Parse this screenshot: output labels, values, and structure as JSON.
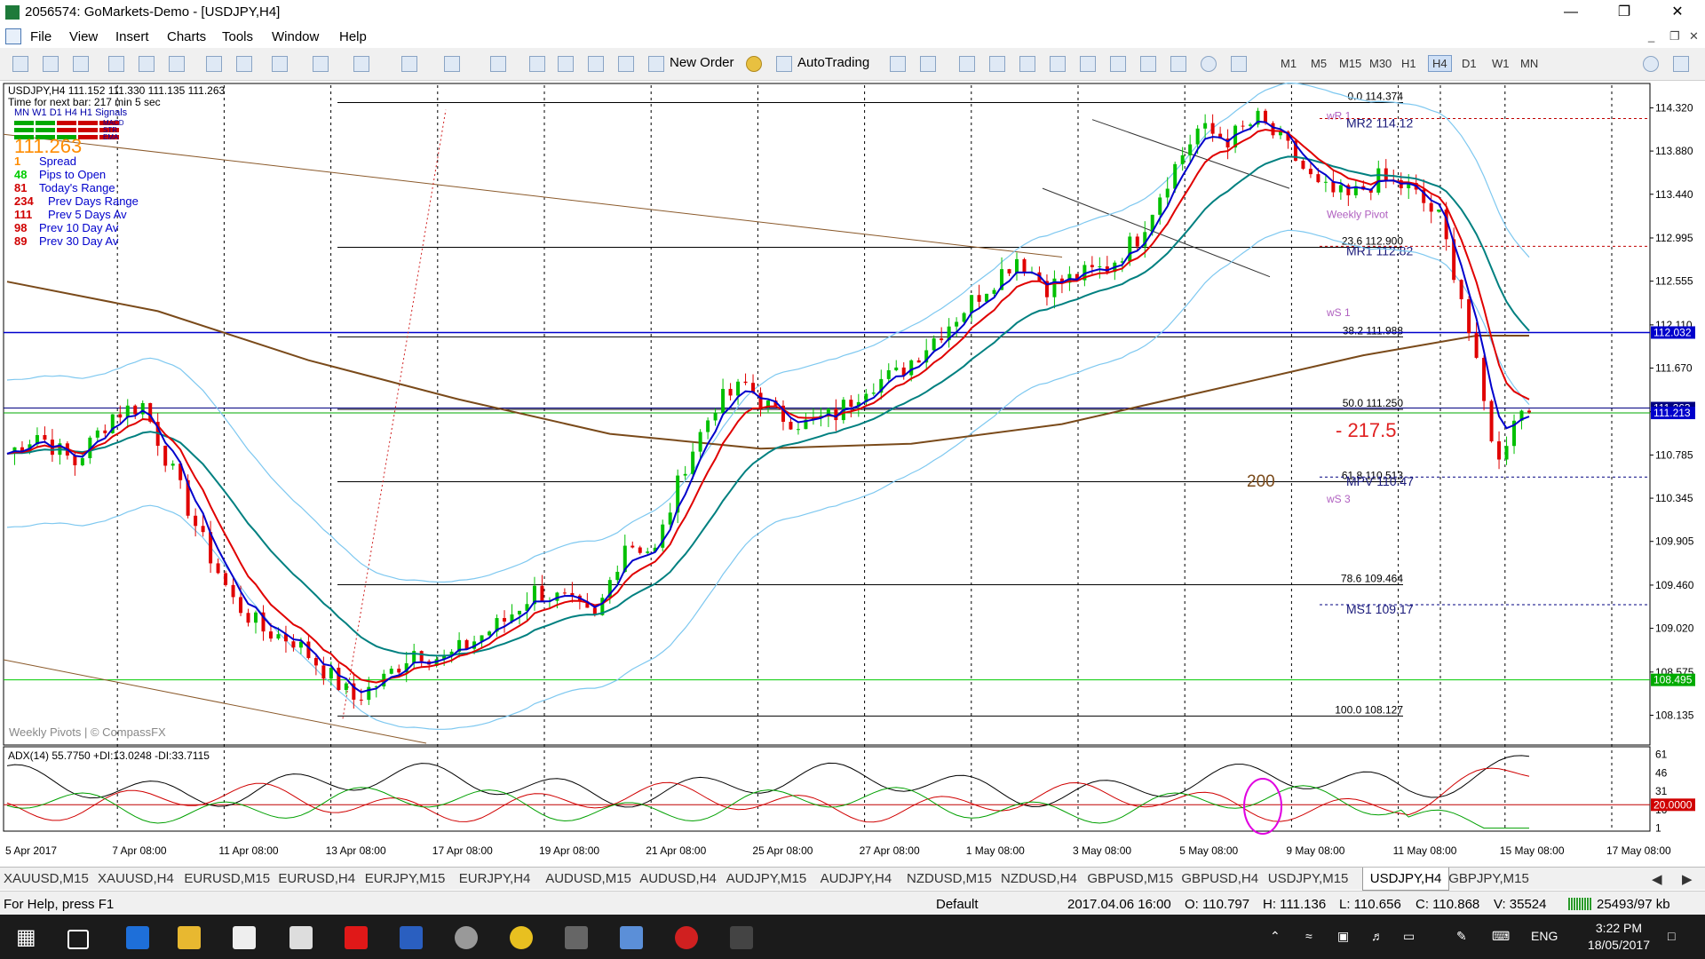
{
  "window": {
    "title": "2056574: GoMarkets-Demo - [USDJPY,H4]"
  },
  "menu": [
    "File",
    "View",
    "Insert",
    "Charts",
    "Tools",
    "Window",
    "Help"
  ],
  "toolbar": {
    "new_order": "New Order",
    "autotrading": "AutoTrading",
    "timeframes": [
      "M1",
      "M5",
      "M15",
      "M30",
      "H1",
      "H4",
      "D1",
      "W1",
      "MN"
    ],
    "active_tf": "H4"
  },
  "chart_header": {
    "symbol_line": "USDJPY,H4  111.152 111.330 111.135 111.263",
    "next_bar": "Time for next bar: 217 min 5 sec",
    "signals_label": "MN W1 D1 H4 H1  Signals",
    "signal_rows": [
      "MACD",
      "STR",
      "EMA"
    ],
    "big_price": "111.263"
  },
  "stats": [
    {
      "value": "1",
      "label": "Spread"
    },
    {
      "value": "48",
      "label": "Pips to Open"
    },
    {
      "value": "81",
      "label": "Today's Range"
    },
    {
      "value": "234",
      "label": "Prev Days Range"
    },
    {
      "value": "111",
      "label": "Prev 5 Days Av"
    },
    {
      "value": "98",
      "label": "Prev 10 Day Av"
    },
    {
      "value": "89",
      "label": "Prev 30 Day Av"
    }
  ],
  "watermark": "Weekly Pivots | © CompassFX",
  "chart_data": {
    "type": "candlestick",
    "symbol": "USDJPY",
    "timeframe": "H4",
    "ylim": [
      107.85,
      114.55
    ],
    "y_ticks": [
      "114.320",
      "113.880",
      "113.440",
      "112.995",
      "112.555",
      "112.110",
      "111.670",
      "111.225",
      "110.785",
      "110.345",
      "109.905",
      "109.460",
      "109.020",
      "108.575",
      "108.135"
    ],
    "x_labels": [
      "5 Apr 2017",
      "7 Apr 08:00",
      "11 Apr 08:00",
      "13 Apr 08:00",
      "17 Apr 08:00",
      "19 Apr 08:00",
      "21 Apr 08:00",
      "25 Apr 08:00",
      "27 Apr 08:00",
      "1 May 08:00",
      "3 May 08:00",
      "5 May 08:00",
      "9 May 08:00",
      "11 May 08:00",
      "15 May 08:00",
      "17 May 08:00"
    ],
    "close_path": [
      [
        0,
        110.8
      ],
      [
        4,
        111.0
      ],
      [
        9,
        110.7
      ],
      [
        14,
        111.2
      ],
      [
        18,
        111.3
      ],
      [
        22,
        110.6
      ],
      [
        26,
        109.9
      ],
      [
        30,
        109.3
      ],
      [
        34,
        109.0
      ],
      [
        38,
        108.9
      ],
      [
        42,
        108.6
      ],
      [
        46,
        108.3
      ],
      [
        50,
        108.5
      ],
      [
        54,
        108.8
      ],
      [
        58,
        108.7
      ],
      [
        62,
        108.9
      ],
      [
        66,
        109.1
      ],
      [
        70,
        109.4
      ],
      [
        74,
        109.3
      ],
      [
        78,
        109.1
      ],
      [
        82,
        109.9
      ],
      [
        86,
        109.8
      ],
      [
        90,
        110.7
      ],
      [
        94,
        111.3
      ],
      [
        98,
        111.5
      ],
      [
        102,
        111.2
      ],
      [
        106,
        111.1
      ],
      [
        110,
        111.2
      ],
      [
        114,
        111.5
      ],
      [
        118,
        111.6
      ],
      [
        122,
        111.9
      ],
      [
        126,
        112.2
      ],
      [
        130,
        112.5
      ],
      [
        134,
        112.8
      ],
      [
        138,
        112.5
      ],
      [
        142,
        112.6
      ],
      [
        146,
        112.7
      ],
      [
        150,
        113.0
      ],
      [
        154,
        113.6
      ],
      [
        158,
        114.1
      ],
      [
        162,
        114.0
      ],
      [
        166,
        114.2
      ],
      [
        170,
        113.9
      ],
      [
        174,
        113.5
      ],
      [
        178,
        113.4
      ],
      [
        182,
        113.6
      ],
      [
        186,
        113.5
      ],
      [
        190,
        113.2
      ],
      [
        193,
        112.4
      ],
      [
        196,
        111.3
      ],
      [
        198,
        110.7
      ],
      [
        200,
        111.2
      ],
      [
        202,
        111.26
      ]
    ],
    "levels": [
      {
        "name": "fib-0",
        "label": "0.0 114.374",
        "value": 114.374
      },
      {
        "name": "fib-23",
        "label": "23.6 112.900",
        "value": 112.9
      },
      {
        "name": "fib-38",
        "label": "38.2 111.988",
        "value": 111.988
      },
      {
        "name": "fib-50",
        "label": "50.0 111.250",
        "value": 111.25
      },
      {
        "name": "fib-61",
        "label": "61.8 110.513",
        "value": 110.513
      },
      {
        "name": "fib-78",
        "label": "78.6 109.464",
        "value": 109.464
      },
      {
        "name": "fib-100",
        "label": "100.0 108.127",
        "value": 108.127
      }
    ],
    "pivots": [
      {
        "label": "wR 1",
        "value": 114.2
      },
      {
        "label": "MR2  114.12",
        "value": 114.12
      },
      {
        "label": "Weekly Pivot",
        "value": 113.2
      },
      {
        "label": "MR1  112.82",
        "value": 112.82
      },
      {
        "label": "wS 1",
        "value": 112.2
      },
      {
        "label": "MPV  110.47",
        "value": 110.47
      },
      {
        "label": "wS 3",
        "value": 110.3
      },
      {
        "label": "MS1  109.17",
        "value": 109.17
      }
    ],
    "price_tags": [
      {
        "label": "112.032",
        "value": 112.032,
        "color": "#0000cc"
      },
      {
        "label": "111.263",
        "value": 111.263,
        "color": "#000080"
      },
      {
        "label": "111.213",
        "value": 111.213,
        "color": "#0000cc"
      },
      {
        "label": "108.495",
        "value": 108.495,
        "color": "#00aa00"
      }
    ],
    "annotations": {
      "pips": "- 217.5",
      "ma_label": "200"
    },
    "adx": {
      "label": "ADX(14) 55.7750 +DI:13.0248 -DI:33.7115",
      "ticks": [
        "61",
        "46",
        "31",
        "16",
        "1"
      ],
      "level_tag": "20.0000",
      "ylim": [
        0,
        65
      ]
    },
    "colors": {
      "bull": "#00c000",
      "bear": "#e00000",
      "ema_fast": "#e00000",
      "ema_slow": "#0000cc",
      "ema_mid": "#008080",
      "ma200": "#7a4a1a",
      "bands": "#7ec8f0",
      "pips": "#e02020",
      "ma_text": "#7a4a1a"
    }
  },
  "symbol_tabs": [
    "XAUUSD,M15",
    "XAUUSD,H4",
    "EURUSD,M15",
    "EURUSD,H4",
    "EURJPY,M15",
    "EURJPY,H4",
    "AUDUSD,M15",
    "AUDUSD,H4",
    "AUDJPY,M15",
    "AUDJPY,H4",
    "NZDUSD,M15",
    "NZDUSD,H4",
    "GBPUSD,M15",
    "GBPUSD,H4",
    "USDJPY,M15",
    "USDJPY,H4",
    "GBPJPY,M15"
  ],
  "active_tab": "USDJPY,H4",
  "status": {
    "help": "For Help, press F1",
    "profile": "Default",
    "time": "2017.04.06 16:00",
    "open": "O: 110.797",
    "high": "H: 111.136",
    "low": "L: 110.656",
    "close": "C: 110.868",
    "volume": "V: 35524",
    "traffic": "25493/97 kb"
  },
  "taskbar": {
    "lang": "ENG",
    "time": "3:22 PM",
    "date": "18/05/2017"
  }
}
